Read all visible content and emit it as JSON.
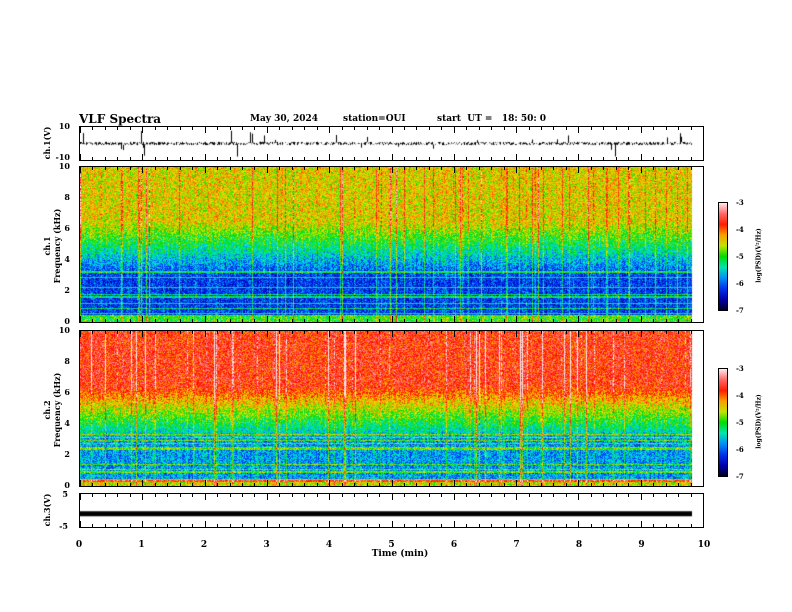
{
  "header": {
    "title": "VLF Spectra",
    "date": "May 30, 2024",
    "station": "station=OUI",
    "start": "start  UT =   18: 50: 0"
  },
  "colors": {
    "trace": "#000000"
  },
  "chart_data": [
    {
      "type": "line",
      "name": "ch1-waveform",
      "ylabel": "ch.1(V)",
      "ylim": [
        -10,
        10
      ],
      "yticks": [
        "10",
        "-10"
      ],
      "baseline": 0,
      "noise_amplitude": 2,
      "spike_amplitude": 8
    },
    {
      "type": "heatmap",
      "name": "ch1-spectrogram",
      "ylabel_lines": [
        "ch.1",
        "Frequency (kHz)"
      ],
      "ylim": [
        0,
        10
      ],
      "yticks": [
        "0",
        "2",
        "4",
        "6",
        "8",
        "10"
      ],
      "xlim": [
        0,
        10
      ],
      "data_end_min": 9.83,
      "colorbar": {
        "label": "log(PSD)(V²/Hz)",
        "range": [
          -7,
          -3
        ],
        "ticks": [
          "-3",
          "-4",
          "-5",
          "-6",
          "-7"
        ]
      },
      "low_band_level": -6.3,
      "high_band_level": -4.6
    },
    {
      "type": "heatmap",
      "name": "ch2-spectrogram",
      "ylabel_lines": [
        "ch.2",
        "Frequency (kHz)"
      ],
      "ylim": [
        0,
        10
      ],
      "yticks": [
        "0",
        "2",
        "4",
        "6",
        "8",
        "10"
      ],
      "xlim": [
        0,
        10
      ],
      "data_end_min": 9.83,
      "colorbar": {
        "label": "log(PSD)(V²/Hz)",
        "range": [
          -7,
          -3
        ],
        "ticks": [
          "-3",
          "-4",
          "-5",
          "-6",
          "-7"
        ]
      },
      "low_band_level": -5.9,
      "high_band_level": -3.9
    },
    {
      "type": "line",
      "name": "ch3-waveform",
      "ylabel": "ch.3(V)",
      "ylim": [
        -5,
        5
      ],
      "yticks": [
        "5",
        "-5"
      ],
      "constant_value": -1
    }
  ],
  "xaxis": {
    "label": "Time (min)",
    "ticks": [
      "0",
      "1",
      "2",
      "3",
      "4",
      "5",
      "6",
      "7",
      "8",
      "9",
      "10"
    ],
    "range": [
      0,
      10
    ]
  }
}
